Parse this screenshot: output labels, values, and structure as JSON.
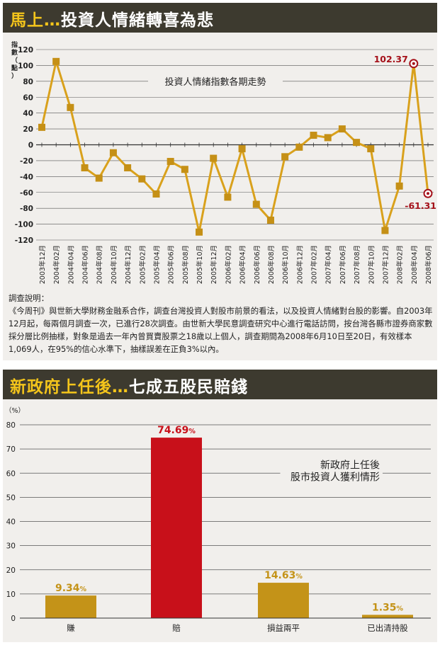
{
  "panel1": {
    "title_a": "馬上…",
    "title_b": "投資人情緒轉喜為悲",
    "note_title": "調查說明：",
    "note_body": "《今周刊》與世新大學財務金融系合作，調查台灣投資人對股市前景的看法，以及投資人情緒對台股的影響。自2003年12月起，每兩個月調查一次，已進行28次調查。由世新大學民意調查研究中心進行電話訪問，按台灣各縣市證券商家數採分層比例抽樣，對象是過去一年內曾買賣股票之18歲以上個人，調查期間為2008年6月10日至20日，有效樣本1,069人，在95%的信心水準下，抽樣誤差在正負3%以內。"
  },
  "panel2": {
    "title_a": "新政府上任後…",
    "title_b": "七成五股民賠錢"
  },
  "colors": {
    "banner_bg": "#3d3a2f",
    "line": "#d9a11c",
    "marker": "#c59016",
    "highlight": "#a5111a",
    "bar_gold": "#c49318",
    "bar_red": "#c8101a"
  },
  "chart_data": [
    {
      "type": "line",
      "title": "投資人情緒指數各期走勢",
      "ylabel": "指數（點）",
      "ylim": [
        -120,
        120
      ],
      "yticks": [
        120,
        100,
        80,
        60,
        40,
        20,
        0,
        -20,
        -40,
        -60,
        -80,
        -100,
        -120
      ],
      "categories": [
        "2003年12月",
        "2004年02月",
        "2004年04月",
        "2004年06月",
        "2004年08月",
        "2004年10月",
        "2004年12月",
        "2005年02月",
        "2005年04月",
        "2005年06月",
        "2005年08月",
        "2005年10月",
        "2005年12月",
        "2006年02月",
        "2006年04月",
        "2006年06月",
        "2006年08月",
        "2006年10月",
        "2006年12月",
        "2007年02月",
        "2007年04月",
        "2007年06月",
        "2007年08月",
        "2007年10月",
        "2007年12月",
        "2008年02月",
        "2008年04月",
        "2008年06月"
      ],
      "values": [
        22,
        105,
        47,
        -29,
        -42,
        -10,
        -29,
        -43,
        -62,
        -21,
        -31,
        -110,
        -17,
        -66,
        -5,
        -75,
        -95,
        -15,
        -3,
        12,
        9,
        20,
        3,
        -5,
        -108,
        -52,
        102.37,
        -61.31
      ],
      "annotations": [
        {
          "label": "102.37",
          "index": 26
        },
        {
          "label": "-61.31",
          "index": 27
        }
      ]
    },
    {
      "type": "bar",
      "title": "新政府上任後\n股市投資人獲利情形",
      "ylabel": "（%）",
      "ylim": [
        0,
        80
      ],
      "yticks": [
        80,
        70,
        60,
        50,
        40,
        30,
        20,
        10,
        0
      ],
      "categories": [
        "賺",
        "賠",
        "損益兩平",
        "已出清持股"
      ],
      "values": [
        9.34,
        74.69,
        14.63,
        1.35
      ],
      "value_labels": [
        "9.34",
        "74.69",
        "14.63",
        "1.35"
      ],
      "value_unit": "%",
      "title_lines": [
        "新政府上任後",
        "股市投資人獲利情形"
      ]
    }
  ]
}
